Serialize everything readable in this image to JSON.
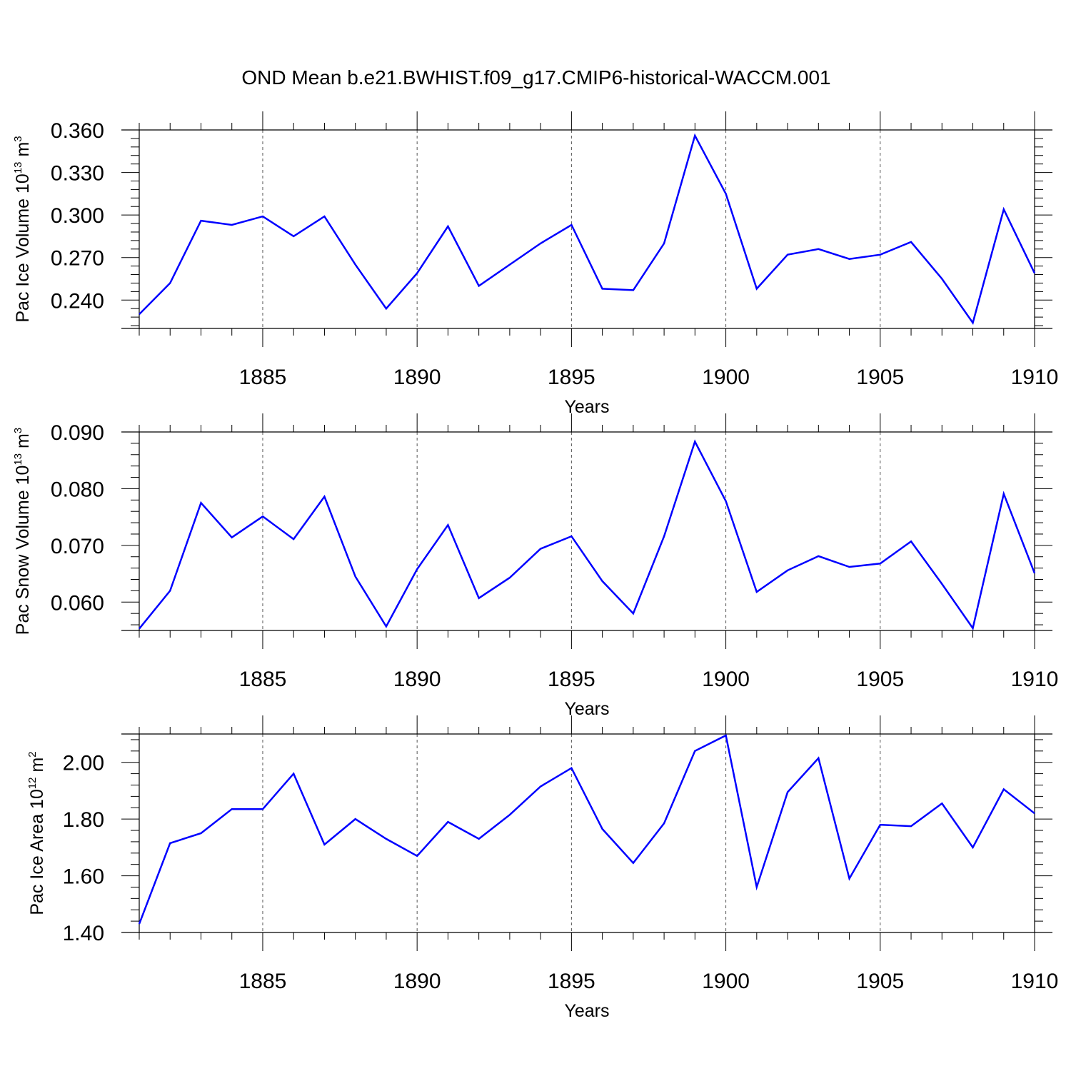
{
  "title": "OND Mean b.e21.BWHIST.f09_g17.CMIP6-historical-WACCM.001",
  "chart_data": [
    {
      "type": "line",
      "ylabel": "Pac Ice Volume 10",
      "ylabel_exp": "13",
      "ylabel_unit": "m",
      "ylabel_unit_exp": "3",
      "xlabel": "Years",
      "xlim": [
        1881,
        1910
      ],
      "ylim": [
        0.22,
        0.36
      ],
      "xticks": [
        1885,
        1890,
        1895,
        1900,
        1905,
        1910
      ],
      "yticks": [
        0.24,
        0.27,
        0.3,
        0.33,
        0.36
      ],
      "ytick_labels": [
        "0.240",
        "0.270",
        "0.300",
        "0.330",
        "0.360"
      ],
      "grid_x": true,
      "series": [
        {
          "name": "Pac Ice Volume",
          "color": "#0000ff",
          "x": [
            1881,
            1882,
            1883,
            1884,
            1885,
            1886,
            1887,
            1888,
            1889,
            1890,
            1891,
            1892,
            1893,
            1894,
            1895,
            1896,
            1897,
            1898,
            1899,
            1900,
            1901,
            1902,
            1903,
            1904,
            1905,
            1906,
            1907,
            1908,
            1909,
            1910
          ],
          "values": [
            0.23,
            0.252,
            0.296,
            0.293,
            0.299,
            0.285,
            0.299,
            0.265,
            0.234,
            0.259,
            0.292,
            0.25,
            0.265,
            0.28,
            0.293,
            0.248,
            0.247,
            0.28,
            0.356,
            0.315,
            0.248,
            0.272,
            0.276,
            0.269,
            0.272,
            0.281,
            0.255,
            0.224,
            0.304,
            0.259
          ]
        }
      ]
    },
    {
      "type": "line",
      "ylabel": "Pac Snow Volume 10",
      "ylabel_exp": "13",
      "ylabel_unit": "m",
      "ylabel_unit_exp": "3",
      "xlabel": "Years",
      "xlim": [
        1881,
        1910
      ],
      "ylim": [
        0.055,
        0.09
      ],
      "xticks": [
        1885,
        1890,
        1895,
        1900,
        1905,
        1910
      ],
      "yticks": [
        0.06,
        0.07,
        0.08,
        0.09
      ],
      "ytick_labels": [
        "0.060",
        "0.070",
        "0.080",
        "0.090"
      ],
      "grid_x": true,
      "series": [
        {
          "name": "Pac Snow Volume",
          "color": "#0000ff",
          "x": [
            1881,
            1882,
            1883,
            1884,
            1885,
            1886,
            1887,
            1888,
            1889,
            1890,
            1891,
            1892,
            1893,
            1894,
            1895,
            1896,
            1897,
            1898,
            1899,
            1900,
            1901,
            1902,
            1903,
            1904,
            1905,
            1906,
            1907,
            1908,
            1909,
            1910
          ],
          "values": [
            0.0553,
            0.062,
            0.0775,
            0.0714,
            0.0751,
            0.0711,
            0.0786,
            0.0645,
            0.0557,
            0.0658,
            0.0736,
            0.0607,
            0.0643,
            0.0694,
            0.0716,
            0.0637,
            0.058,
            0.0716,
            0.0883,
            0.0778,
            0.0618,
            0.0656,
            0.0681,
            0.0662,
            0.0668,
            0.0707,
            0.0632,
            0.0554,
            0.0791,
            0.0651
          ]
        }
      ]
    },
    {
      "type": "line",
      "ylabel": "Pac Ice Area 10",
      "ylabel_exp": "12",
      "ylabel_unit": "m",
      "ylabel_unit_exp": "2",
      "xlabel": "Years",
      "xlim": [
        1881,
        1910
      ],
      "ylim": [
        1.4,
        2.1
      ],
      "xticks": [
        1885,
        1890,
        1895,
        1900,
        1905,
        1910
      ],
      "yticks": [
        1.4,
        1.6,
        1.8,
        2.0
      ],
      "ytick_labels": [
        "1.40",
        "1.60",
        "1.80",
        "2.00"
      ],
      "grid_x": true,
      "series": [
        {
          "name": "Pac Ice Area",
          "color": "#0000ff",
          "x": [
            1881,
            1882,
            1883,
            1884,
            1885,
            1886,
            1887,
            1888,
            1889,
            1890,
            1891,
            1892,
            1893,
            1894,
            1895,
            1896,
            1897,
            1898,
            1899,
            1900,
            1901,
            1902,
            1903,
            1904,
            1905,
            1906,
            1907,
            1908,
            1909,
            1910
          ],
          "values": [
            1.43,
            1.715,
            1.75,
            1.835,
            1.835,
            1.96,
            1.71,
            1.8,
            1.73,
            1.67,
            1.79,
            1.73,
            1.815,
            1.915,
            1.98,
            1.765,
            1.645,
            1.785,
            2.04,
            2.095,
            1.56,
            1.895,
            2.015,
            1.59,
            1.78,
            1.775,
            1.855,
            1.7,
            1.905,
            1.82
          ]
        }
      ]
    }
  ]
}
